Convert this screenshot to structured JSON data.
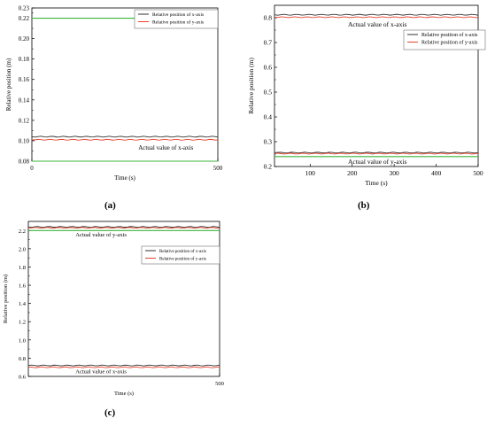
{
  "chart_data": [
    {
      "panel": "a",
      "type": "line",
      "xlabel": "Time (s)",
      "ylabel": "Relative position (m)",
      "xlim": [
        0,
        500
      ],
      "ylim": [
        0.08,
        0.23
      ],
      "x_ticks": [
        0,
        500
      ],
      "y_ticks": [
        0.08,
        0.1,
        0.12,
        0.14,
        0.16,
        0.18,
        0.2,
        0.22,
        0.23
      ],
      "grid": false,
      "legend_position": "top-right",
      "series": [
        {
          "name": "Relative position of x-axis",
          "color": "#333333",
          "x": [
            0,
            500
          ],
          "y": [
            0.104,
            0.104
          ]
        },
        {
          "name": "Relative position of y-axis",
          "color": "#e8412c",
          "x": [
            0,
            500
          ],
          "y": [
            0.101,
            0.101
          ]
        },
        {
          "name": "",
          "color": "#3cb53c",
          "x": [
            0,
            500
          ],
          "y": [
            0.22,
            0.22
          ]
        },
        {
          "name": "",
          "color": "#3cb53c",
          "x": [
            0,
            500
          ],
          "y": [
            0.08,
            0.08
          ]
        }
      ],
      "annotations": [
        {
          "text": "Actual value of y-axis",
          "x": 360,
          "y": 0.215
        },
        {
          "text": "Actual value of x-axis",
          "x": 360,
          "y": 0.094
        }
      ]
    },
    {
      "panel": "b",
      "type": "line",
      "xlabel": "Time (s)",
      "ylabel": "Relative position (m)",
      "xlim": [
        15,
        500
      ],
      "ylim": [
        0.2,
        0.85
      ],
      "x_ticks": [
        100,
        200,
        300,
        400,
        500
      ],
      "y_ticks": [
        0.2,
        0.3,
        0.4,
        0.5,
        0.6,
        0.7,
        0.8
      ],
      "grid": false,
      "legend_position": "top-right",
      "series": [
        {
          "name": "Relative position of x-axis",
          "color": "#333333",
          "x": [
            15,
            500
          ],
          "y": [
            0.812,
            0.812
          ]
        },
        {
          "name": "Relative position of y-axis",
          "color": "#e8412c",
          "x": [
            15,
            500
          ],
          "y": [
            0.802,
            0.802
          ]
        },
        {
          "name": "",
          "color": "#333333",
          "x": [
            15,
            500
          ],
          "y": [
            0.256,
            0.256
          ]
        },
        {
          "name": "",
          "color": "#e8412c",
          "x": [
            15,
            500
          ],
          "y": [
            0.252,
            0.252
          ]
        },
        {
          "name": "",
          "color": "#3cb53c",
          "x": [
            15,
            500
          ],
          "y": [
            0.24,
            0.24
          ]
        }
      ],
      "annotations": [
        {
          "text": "Actual value of x-axis",
          "x": 260,
          "y": 0.775
        },
        {
          "text": "Actual value of y-axis",
          "x": 260,
          "y": 0.222
        }
      ]
    },
    {
      "panel": "c",
      "type": "line",
      "xlabel": "Time (s)",
      "ylabel": "Relative position (m)",
      "xlim": [
        0,
        500
      ],
      "ylim": [
        0.6,
        2.3
      ],
      "x_ticks": [
        500
      ],
      "y_ticks": [
        0.6,
        0.8,
        1.0,
        1.2,
        1.4,
        1.6,
        1.8,
        2.0,
        2.2
      ],
      "grid": false,
      "legend_position": "top-right",
      "series": [
        {
          "name": "Relative position of x-axis",
          "color": "#333333",
          "x": [
            0,
            500
          ],
          "y": [
            2.24,
            2.24
          ]
        },
        {
          "name": "Relative position of y-axis",
          "color": "#e8412c",
          "x": [
            0,
            500
          ],
          "y": [
            2.23,
            2.23
          ]
        },
        {
          "name": "",
          "color": "#3cb53c",
          "x": [
            0,
            500
          ],
          "y": [
            2.2,
            2.2
          ]
        },
        {
          "name": "",
          "color": "#333333",
          "x": [
            0,
            500
          ],
          "y": [
            0.72,
            0.72
          ]
        },
        {
          "name": "",
          "color": "#e8412c",
          "x": [
            0,
            500
          ],
          "y": [
            0.7,
            0.7
          ]
        }
      ],
      "annotations": [
        {
          "text": "Actual value of y-axis",
          "x": 190,
          "y": 2.165
        },
        {
          "text": "Actual value of x-axis",
          "x": 190,
          "y": 0.665
        }
      ]
    }
  ],
  "labels": {
    "a": "(a)",
    "b": "(b)",
    "c": "(c)"
  },
  "tick_formats": {
    "a": 2,
    "b": 1,
    "c": 1
  }
}
